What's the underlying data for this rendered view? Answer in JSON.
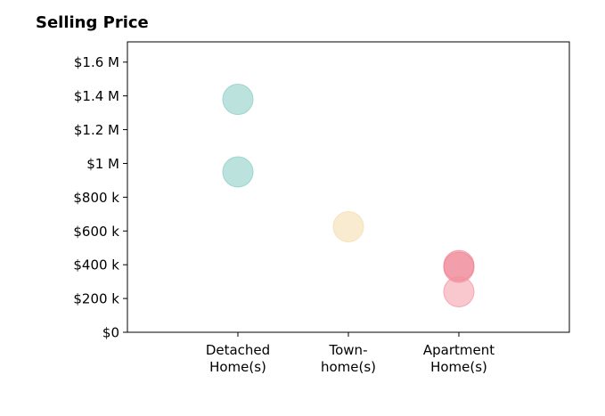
{
  "chart_data": {
    "type": "scatter",
    "title": "Selling Price",
    "xlabel": "",
    "ylabel": "",
    "categories": [
      [
        "Detached",
        "Home(s)"
      ],
      [
        "Town-",
        "home(s)"
      ],
      [
        "Apartment",
        "Home(s)"
      ]
    ],
    "xlim": [
      -1,
      3
    ],
    "ylim": [
      0,
      1720000
    ],
    "yticks": [
      0,
      200000,
      400000,
      600000,
      800000,
      1000000,
      1200000,
      1400000,
      1600000
    ],
    "ytick_labels": [
      "$0",
      "$200 k",
      "$400 k",
      "$600 k",
      "$800 k",
      "$1 M",
      "$1.2 M",
      "$1.4 M",
      "$1.6 M"
    ],
    "grid": false,
    "points": [
      {
        "category": 0,
        "value": 1380000,
        "color": "#8ecfc7",
        "opacity": 0.6
      },
      {
        "category": 0,
        "value": 950000,
        "color": "#8ecfc7",
        "opacity": 0.6
      },
      {
        "category": 1,
        "value": 625000,
        "color": "#f5deb0",
        "opacity": 0.6
      },
      {
        "category": 2,
        "value": 395000,
        "color": "#f08090",
        "opacity": 0.5
      },
      {
        "category": 2,
        "value": 385000,
        "color": "#f08090",
        "opacity": 0.5
      },
      {
        "category": 2,
        "value": 240000,
        "color": "#f4909d",
        "opacity": 0.5
      }
    ]
  }
}
